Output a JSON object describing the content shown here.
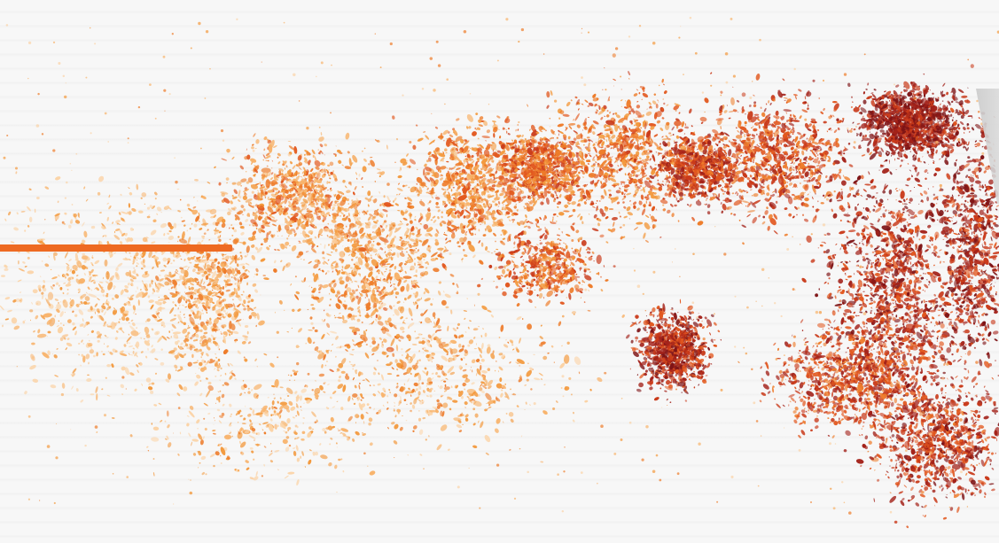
{
  "colors": {
    "background": "#f7f7f7",
    "accent_bar": "#ee6a22",
    "palette": [
      "#fbd3a6",
      "#f8b36b",
      "#f39a3f",
      "#ee7c2a",
      "#e2581f",
      "#c93a1a",
      "#a3221a",
      "#7e1416"
    ]
  },
  "elements": {
    "accent_bar": "orange-horizontal-bar",
    "speckle_field": "orange-red-speckle-pattern",
    "edge_panel": "gray-edge-panel"
  }
}
